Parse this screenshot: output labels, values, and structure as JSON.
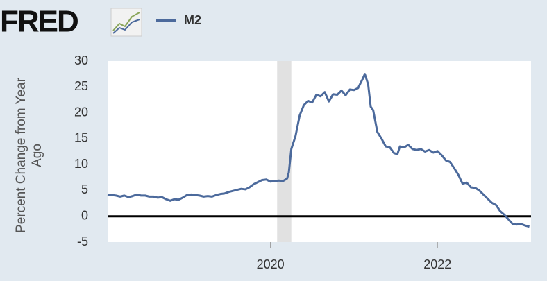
{
  "chart_data": {
    "type": "line",
    "brand": "FRED",
    "y_label": "Percent Change from Year Ago",
    "x": [
      2018.05,
      2018.1,
      2018.15,
      2018.2,
      2018.25,
      2018.3,
      2018.35,
      2018.4,
      2018.45,
      2018.5,
      2018.55,
      2018.6,
      2018.65,
      2018.7,
      2018.75,
      2018.8,
      2018.85,
      2018.9,
      2018.95,
      2019.0,
      2019.05,
      2019.1,
      2019.15,
      2019.2,
      2019.25,
      2019.3,
      2019.35,
      2019.4,
      2019.45,
      2019.5,
      2019.55,
      2019.6,
      2019.65,
      2019.7,
      2019.75,
      2019.8,
      2019.85,
      2019.9,
      2019.95,
      2020.0,
      2020.05,
      2020.1,
      2020.15,
      2020.2,
      2020.22,
      2020.25,
      2020.3,
      2020.35,
      2020.4,
      2020.45,
      2020.5,
      2020.55,
      2020.6,
      2020.65,
      2020.7,
      2020.75,
      2020.8,
      2020.85,
      2020.9,
      2020.95,
      2021.0,
      2021.05,
      2021.08,
      2021.1,
      2021.13,
      2021.17,
      2021.2,
      2021.23,
      2021.28,
      2021.33,
      2021.38,
      2021.43,
      2021.48,
      2021.52,
      2021.55,
      2021.6,
      2021.65,
      2021.7,
      2021.75,
      2021.8,
      2021.85,
      2021.9,
      2021.95,
      2022.0,
      2022.05,
      2022.1,
      2022.15,
      2022.2,
      2022.25,
      2022.3,
      2022.35,
      2022.4,
      2022.45,
      2022.5,
      2022.55,
      2022.6,
      2022.65,
      2022.7,
      2022.75,
      2022.8,
      2022.85,
      2022.9,
      2022.95,
      2023.0,
      2023.05,
      2023.1
    ],
    "series": [
      {
        "name": "M2",
        "color": "#4c6a9c",
        "values": [
          4.2,
          4.1,
          4.0,
          3.8,
          4.0,
          3.7,
          3.9,
          4.2,
          4.0,
          4.0,
          3.8,
          3.8,
          3.6,
          3.7,
          3.3,
          3.0,
          3.3,
          3.2,
          3.6,
          4.1,
          4.2,
          4.1,
          4.0,
          3.8,
          3.9,
          3.8,
          4.1,
          4.3,
          4.4,
          4.7,
          4.9,
          5.1,
          5.3,
          5.2,
          5.6,
          6.2,
          6.6,
          7.0,
          7.1,
          6.7,
          6.8,
          6.9,
          6.8,
          7.3,
          8.5,
          13.0,
          15.5,
          19.5,
          21.5,
          22.3,
          22.0,
          23.5,
          23.2,
          24.0,
          22.2,
          23.6,
          23.5,
          24.3,
          23.4,
          24.5,
          24.4,
          24.8,
          25.8,
          26.4,
          27.5,
          25.5,
          21.2,
          20.5,
          16.3,
          15.0,
          13.5,
          13.3,
          12.2,
          12.0,
          13.5,
          13.3,
          13.8,
          13.0,
          12.8,
          13.0,
          12.5,
          12.8,
          12.3,
          12.6,
          11.8,
          10.8,
          10.5,
          9.3,
          8.0,
          6.3,
          6.5,
          5.6,
          5.5,
          5.0,
          4.2,
          3.4,
          2.6,
          2.2,
          1.0,
          0.3,
          -0.6,
          -1.5,
          -1.6,
          -1.5,
          -1.8,
          -2.0
        ]
      }
    ],
    "recession": [
      2020.08,
      2020.25
    ],
    "xlim": [
      2018.05,
      2023.12
    ],
    "xticks": [
      2020,
      2022
    ],
    "ylim": [
      -5,
      30
    ],
    "yticks": [
      -5,
      0,
      5,
      10,
      15,
      20,
      25,
      30
    ],
    "zero_line": true
  }
}
